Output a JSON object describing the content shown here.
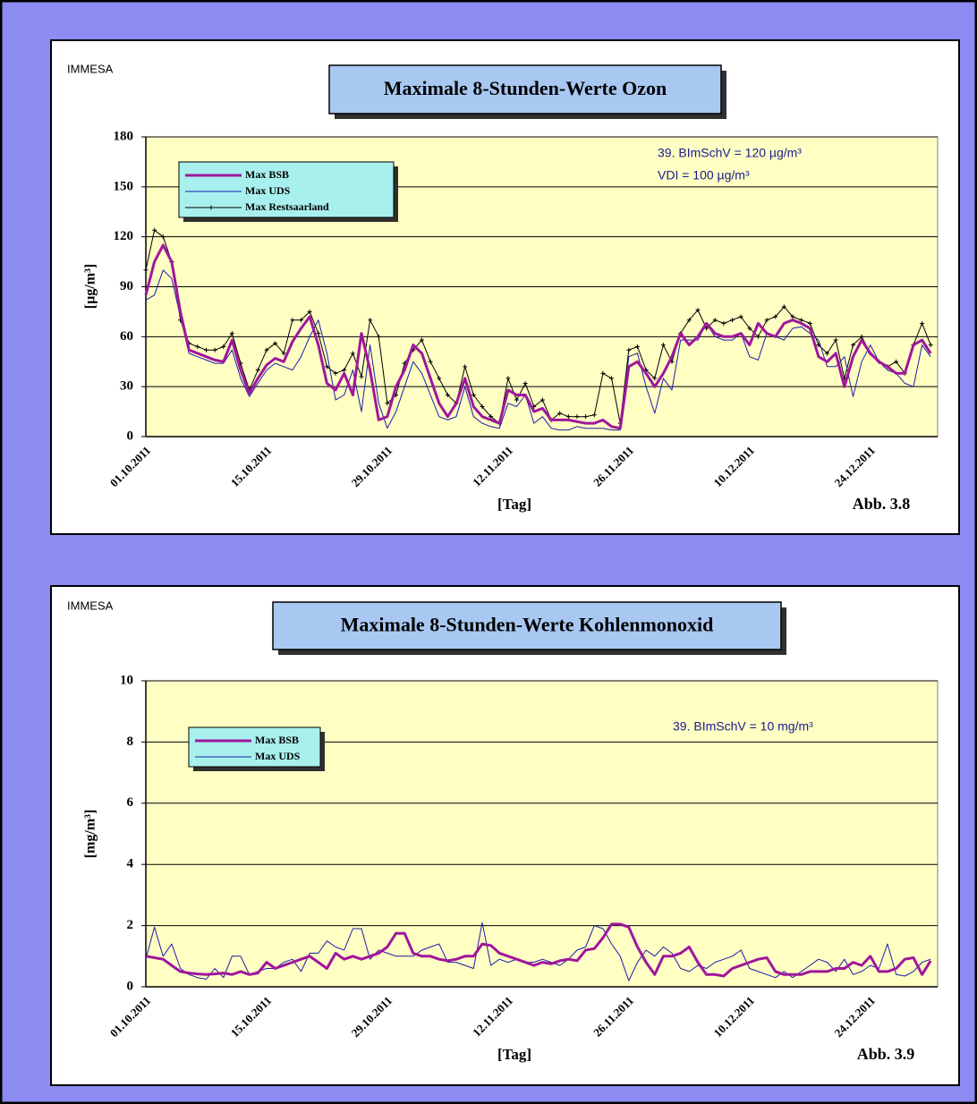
{
  "chart_data": [
    {
      "type": "line",
      "source": "IMMESA",
      "title": "Maximale 8-Stunden-Werte Ozon",
      "ylabel": "[µg/m³]",
      "xlabel": "[Tag]",
      "figure_label": "Abb. 3.8",
      "annotations": [
        "39. BImSchV = 120 µg/m³",
        "VDI  = 100 µg/m³"
      ],
      "ylim": [
        0,
        180
      ],
      "yticks": [
        0,
        30,
        60,
        90,
        120,
        150,
        180
      ],
      "grid": true,
      "categories": [
        "01.10.2011",
        null,
        null,
        null,
        null,
        null,
        null,
        null,
        null,
        null,
        null,
        null,
        null,
        null,
        "15.10.2011",
        null,
        null,
        null,
        null,
        null,
        null,
        null,
        null,
        null,
        null,
        null,
        null,
        null,
        "29.10.2011",
        null,
        null,
        null,
        null,
        null,
        null,
        null,
        null,
        null,
        null,
        null,
        null,
        null,
        "12.11.2011",
        null,
        null,
        null,
        null,
        null,
        null,
        null,
        null,
        null,
        null,
        null,
        null,
        null,
        "26.11.2011",
        null,
        null,
        null,
        null,
        null,
        null,
        null,
        null,
        null,
        null,
        null,
        null,
        null,
        "10.12.2011",
        null,
        null,
        null,
        null,
        null,
        null,
        null,
        null,
        null,
        null,
        null,
        null,
        null,
        "24.12.2011",
        null,
        null,
        null,
        null,
        null,
        null,
        null
      ],
      "series": [
        {
          "name": "Max BSB",
          "color": "#a0169c",
          "values": [
            85,
            105,
            115,
            105,
            75,
            52,
            50,
            48,
            46,
            45,
            58,
            40,
            26,
            35,
            43,
            47,
            45,
            57,
            65,
            72,
            55,
            32,
            28,
            38,
            25,
            62,
            40,
            10,
            12,
            30,
            40,
            55,
            50,
            35,
            20,
            12,
            20,
            35,
            18,
            12,
            10,
            8,
            28,
            25,
            25,
            15,
            17,
            10,
            10,
            10,
            9,
            8,
            8,
            10,
            6,
            5,
            42,
            45,
            38,
            30,
            38,
            48,
            62,
            55,
            60,
            68,
            62,
            60,
            60,
            62,
            55,
            68,
            62,
            60,
            68,
            70,
            68,
            65,
            48,
            45,
            50,
            30,
            48,
            58,
            50,
            45,
            42,
            38,
            38,
            55,
            58,
            50
          ]
        },
        {
          "name": "Max UDS",
          "color": "#1c1ca8",
          "values": [
            82,
            85,
            100,
            95,
            72,
            50,
            48,
            46,
            44,
            44,
            52,
            35,
            24,
            32,
            40,
            44,
            42,
            40,
            48,
            60,
            70,
            50,
            22,
            25,
            40,
            15,
            55,
            20,
            5,
            15,
            30,
            45,
            38,
            25,
            12,
            10,
            12,
            30,
            12,
            8,
            6,
            5,
            20,
            18,
            25,
            8,
            12,
            5,
            4,
            4,
            6,
            5,
            5,
            5,
            4,
            4,
            48,
            50,
            30,
            14,
            35,
            28,
            58,
            58,
            58,
            68,
            60,
            58,
            58,
            62,
            48,
            46,
            62,
            60,
            58,
            65,
            66,
            62,
            58,
            42,
            42,
            48,
            24,
            45,
            55,
            45,
            40,
            38,
            32,
            30,
            55,
            48
          ]
        },
        {
          "name": "Max Restsaarland",
          "color": "#000000",
          "markers": true,
          "values": [
            100,
            124,
            120,
            105,
            70,
            56,
            54,
            52,
            52,
            54,
            62,
            44,
            28,
            40,
            52,
            56,
            50,
            70,
            70,
            75,
            62,
            42,
            38,
            40,
            50,
            36,
            70,
            60,
            20,
            25,
            44,
            52,
            58,
            45,
            35,
            25,
            20,
            42,
            25,
            18,
            12,
            8,
            35,
            22,
            32,
            18,
            22,
            10,
            14,
            12,
            12,
            12,
            13,
            38,
            35,
            8,
            52,
            54,
            40,
            35,
            55,
            45,
            62,
            70,
            76,
            65,
            70,
            68,
            70,
            72,
            65,
            60,
            70,
            72,
            78,
            72,
            70,
            68,
            55,
            50,
            58,
            35,
            55,
            60,
            50,
            45,
            42,
            45,
            38,
            55,
            68,
            55
          ]
        }
      ]
    },
    {
      "type": "line",
      "source": "IMMESA",
      "title": "Maximale 8-Stunden-Werte Kohlenmonoxid",
      "ylabel": "[mg/m³]",
      "xlabel": "[Tag]",
      "figure_label": "Abb. 3.9",
      "annotations": [
        "39. BImSchV = 10 mg/m³"
      ],
      "ylim": [
        0,
        10
      ],
      "yticks": [
        0,
        2,
        4,
        6,
        8,
        10
      ],
      "grid": true,
      "categories": [
        "01.10.2011",
        null,
        null,
        null,
        null,
        null,
        null,
        null,
        null,
        null,
        null,
        null,
        null,
        null,
        "15.10.2011",
        null,
        null,
        null,
        null,
        null,
        null,
        null,
        null,
        null,
        null,
        null,
        null,
        null,
        "29.10.2011",
        null,
        null,
        null,
        null,
        null,
        null,
        null,
        null,
        null,
        null,
        null,
        null,
        null,
        "12.11.2011",
        null,
        null,
        null,
        null,
        null,
        null,
        null,
        null,
        null,
        null,
        null,
        null,
        null,
        "26.11.2011",
        null,
        null,
        null,
        null,
        null,
        null,
        null,
        null,
        null,
        null,
        null,
        null,
        null,
        "10.12.2011",
        null,
        null,
        null,
        null,
        null,
        null,
        null,
        null,
        null,
        null,
        null,
        null,
        null,
        "24.12.2011",
        null,
        null,
        null,
        null,
        null,
        null,
        null
      ],
      "series": [
        {
          "name": "Max BSB",
          "color": "#a0169c",
          "values": [
            1.0,
            0.95,
            0.9,
            0.7,
            0.5,
            0.45,
            0.42,
            0.4,
            0.42,
            0.45,
            0.4,
            0.5,
            0.4,
            0.45,
            0.8,
            0.6,
            0.7,
            0.8,
            0.9,
            1.0,
            0.8,
            0.6,
            1.1,
            0.9,
            1.0,
            0.9,
            1.0,
            1.1,
            1.3,
            1.75,
            1.75,
            1.1,
            1.0,
            1.0,
            0.9,
            0.85,
            0.9,
            1.0,
            1.0,
            1.4,
            1.35,
            1.1,
            1.0,
            0.9,
            0.8,
            0.7,
            0.8,
            0.75,
            0.85,
            0.9,
            0.85,
            1.2,
            1.25,
            1.6,
            2.05,
            2.05,
            1.95,
            1.3,
            0.8,
            0.4,
            1.0,
            1.0,
            1.1,
            1.3,
            0.8,
            0.4,
            0.4,
            0.35,
            0.6,
            0.7,
            0.8,
            0.9,
            0.95,
            0.5,
            0.4,
            0.4,
            0.4,
            0.5,
            0.5,
            0.5,
            0.6,
            0.6,
            0.8,
            0.7,
            1.0,
            0.5,
            0.5,
            0.6,
            0.9,
            0.95,
            0.4,
            0.85
          ]
        },
        {
          "name": "Max UDS",
          "color": "#1c1ca8",
          "values": [
            0.9,
            1.95,
            1.0,
            1.4,
            0.6,
            0.4,
            0.3,
            0.25,
            0.6,
            0.3,
            1.0,
            1.0,
            0.4,
            0.5,
            0.6,
            0.6,
            0.8,
            0.9,
            0.5,
            1.1,
            1.1,
            1.5,
            1.3,
            1.2,
            1.9,
            1.9,
            0.9,
            1.2,
            1.1,
            1.0,
            1.0,
            1.0,
            1.2,
            1.3,
            1.4,
            0.8,
            0.8,
            0.7,
            0.6,
            2.1,
            0.7,
            0.9,
            0.8,
            0.9,
            0.8,
            0.8,
            0.9,
            0.8,
            0.7,
            0.9,
            1.2,
            1.3,
            2.0,
            1.9,
            1.4,
            1.0,
            0.2,
            0.8,
            1.2,
            1.0,
            1.3,
            1.1,
            0.6,
            0.5,
            0.7,
            0.6,
            0.8,
            0.9,
            1.0,
            1.2,
            0.6,
            0.5,
            0.4,
            0.3,
            0.5,
            0.3,
            0.5,
            0.7,
            0.9,
            0.8,
            0.5,
            0.9,
            0.4,
            0.5,
            0.7,
            0.6,
            1.4,
            0.4,
            0.35,
            0.5,
            0.8,
            0.9
          ]
        }
      ]
    }
  ]
}
